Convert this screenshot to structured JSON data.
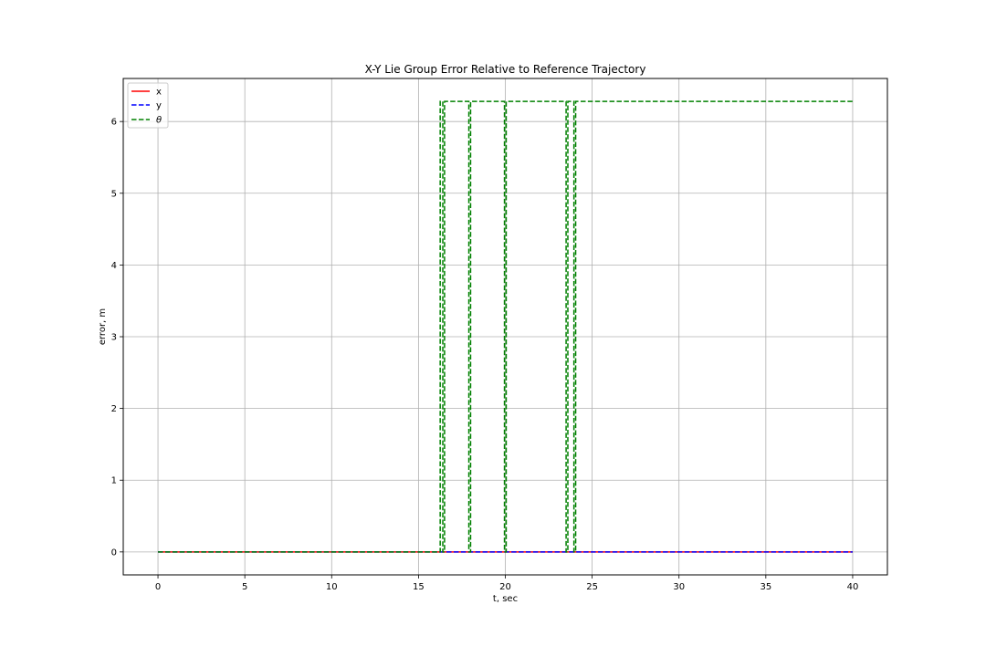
{
  "chart_data": {
    "type": "line",
    "title": "X-Y Lie Group Error Relative to Reference Trajectory",
    "xlabel": "t, sec",
    "ylabel": "error, m",
    "xlim": [
      -2,
      42
    ],
    "ylim": [
      -0.32,
      6.6
    ],
    "xticks": [
      0,
      5,
      10,
      15,
      20,
      25,
      30,
      35,
      40
    ],
    "yticks": [
      0,
      1,
      2,
      3,
      4,
      5,
      6
    ],
    "grid": true,
    "legend_position": "top-left",
    "series": [
      {
        "name": "x",
        "color": "#ff0000",
        "style": "solid",
        "x": [
          0,
          24.0,
          40
        ],
        "y": [
          0,
          0,
          0
        ]
      },
      {
        "name": "y",
        "color": "#0000ff",
        "style": "dashed",
        "x": [
          0,
          24.0,
          40
        ],
        "y": [
          0,
          0,
          0
        ]
      },
      {
        "name": "θ",
        "color": "#008000",
        "style": "dashed",
        "x": [
          0,
          16.25,
          16.25,
          16.4,
          16.4,
          16.5,
          16.5,
          17.9,
          17.9,
          18.0,
          18.0,
          19.95,
          19.95,
          20.05,
          20.05,
          23.5,
          23.5,
          23.6,
          23.6,
          23.95,
          23.95,
          24.05,
          24.05,
          40
        ],
        "y": [
          0,
          0,
          6.28,
          6.28,
          0,
          0,
          6.28,
          6.28,
          0,
          0,
          6.28,
          6.28,
          0,
          0,
          6.28,
          6.28,
          0,
          0,
          6.28,
          6.28,
          0,
          0,
          6.28,
          6.28
        ]
      }
    ]
  }
}
